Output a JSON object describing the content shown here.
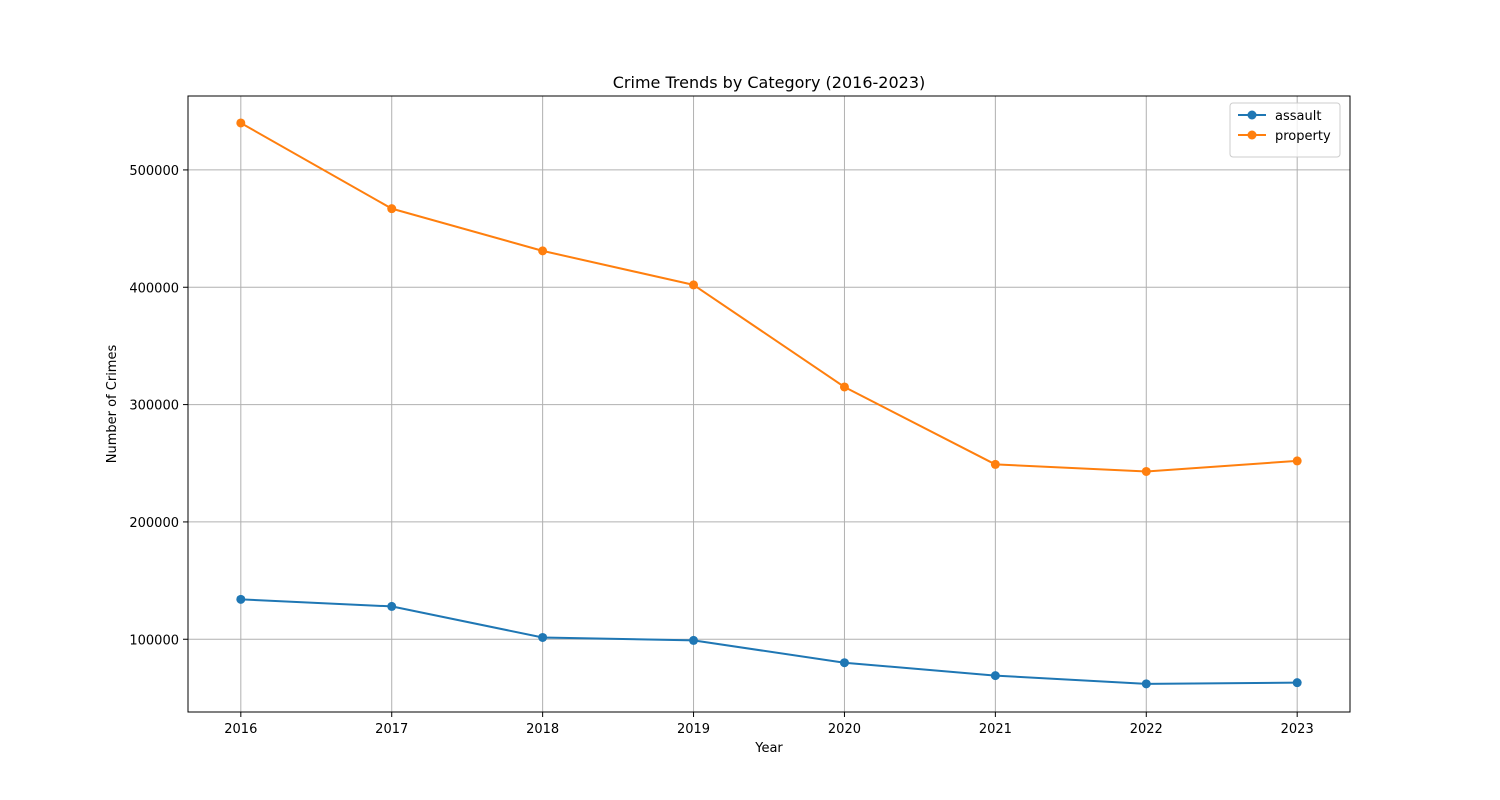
{
  "chart_data": {
    "type": "line",
    "title": "Crime Trends by Category (2016-2023)",
    "xlabel": "Year",
    "ylabel": "Number of Crimes",
    "x": [
      2016,
      2017,
      2018,
      2019,
      2020,
      2021,
      2022,
      2023
    ],
    "x_tick_labels": [
      "2016",
      "2017",
      "2018",
      "2019",
      "2020",
      "2021",
      "2022",
      "2023"
    ],
    "y_ticks": [
      100000,
      200000,
      300000,
      400000,
      500000
    ],
    "y_tick_labels": [
      "100000",
      "200000",
      "300000",
      "400000",
      "500000"
    ],
    "xlim": [
      2015.65,
      2023.35
    ],
    "ylim": [
      38000,
      563000
    ],
    "grid": true,
    "legend_position": "top-right",
    "series": [
      {
        "name": "assault",
        "color": "#1f77b4",
        "marker": "circle",
        "values": [
          134000,
          128000,
          101500,
          99000,
          80000,
          69000,
          62000,
          63000
        ]
      },
      {
        "name": "property",
        "color": "#ff7f0e",
        "marker": "circle",
        "values": [
          540000,
          467000,
          431000,
          402000,
          315000,
          249000,
          243000,
          252000
        ]
      }
    ]
  }
}
